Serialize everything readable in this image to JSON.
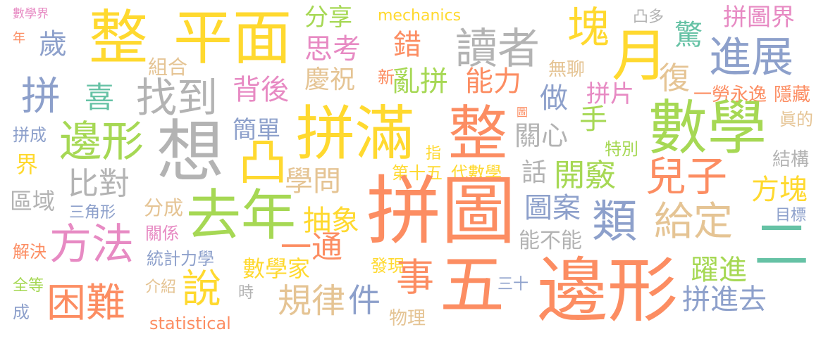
{
  "palette": {
    "orange": "#fc8d62",
    "gold": "#ffd92f",
    "green": "#a6d854",
    "teal": "#66c2a5",
    "blue": "#8da0cb",
    "pink": "#e78ac3",
    "tan": "#e5c494",
    "gray": "#b3b3b3"
  },
  "words": [
    {
      "text": "數學界",
      "color": "#e78ac3"
    },
    {
      "text": "年",
      "color": "#fc8d62"
    },
    {
      "text": "歲",
      "color": "#8da0cb"
    },
    {
      "text": "整",
      "color": "#ffd92f"
    },
    {
      "text": "平面",
      "color": "#ffd92f"
    },
    {
      "text": "分享",
      "color": "#a6d854"
    },
    {
      "text": "mechanics",
      "color": "#ffd92f"
    },
    {
      "text": "思考",
      "color": "#e78ac3"
    },
    {
      "text": "錯",
      "color": "#fc8d62"
    },
    {
      "text": "讀者",
      "color": "#b3b3b3"
    },
    {
      "text": "塊",
      "color": "#ffd92f"
    },
    {
      "text": "月",
      "color": "#ffd92f"
    },
    {
      "text": "驚",
      "color": "#66c2a5"
    },
    {
      "text": "凸多",
      "color": "#b3b3b3"
    },
    {
      "text": "拼圖界",
      "color": "#e78ac3"
    },
    {
      "text": "進展",
      "color": "#8da0cb"
    },
    {
      "text": "組合",
      "color": "#e5c494"
    },
    {
      "text": "拼",
      "color": "#8da0cb"
    },
    {
      "text": "喜",
      "color": "#66c2a5"
    },
    {
      "text": "找到",
      "color": "#b3b3b3"
    },
    {
      "text": "背後",
      "color": "#e78ac3"
    },
    {
      "text": "慶祝",
      "color": "#e5c494"
    },
    {
      "text": "新",
      "color": "#fc8d62"
    },
    {
      "text": "亂拼",
      "color": "#a6d854"
    },
    {
      "text": "能力",
      "color": "#fc8d62"
    },
    {
      "text": "無聊",
      "color": "#e5c494"
    },
    {
      "text": "復",
      "color": "#e5c494"
    },
    {
      "text": "做",
      "color": "#8da0cb"
    },
    {
      "text": "拼片",
      "color": "#e78ac3"
    },
    {
      "text": "一勞永逸",
      "color": "#fc8d62"
    },
    {
      "text": "隱藏",
      "color": "#fc8d62"
    },
    {
      "text": "拼成",
      "color": "#8da0cb"
    },
    {
      "text": "邊形",
      "color": "#a6d854"
    },
    {
      "text": "想",
      "color": "#b3b3b3"
    },
    {
      "text": "凸",
      "color": "#ffd92f"
    },
    {
      "text": "簡單",
      "color": "#8da0cb"
    },
    {
      "text": "拼滿",
      "color": "#ffd92f"
    },
    {
      "text": "整",
      "color": "#fc8d62"
    },
    {
      "text": "圖",
      "color": "#fc8d62"
    },
    {
      "text": "關心",
      "color": "#b3b3b3"
    },
    {
      "text": "手",
      "color": "#a6d854"
    },
    {
      "text": "數學",
      "color": "#a6d854"
    },
    {
      "text": "眞的",
      "color": "#e5c494"
    },
    {
      "text": "特別",
      "color": "#a6d854"
    },
    {
      "text": "界",
      "color": "#ffd92f"
    },
    {
      "text": "比對",
      "color": "#b3b3b3"
    },
    {
      "text": "指",
      "color": "#ffd92f"
    },
    {
      "text": "學問",
      "color": "#e5c494"
    },
    {
      "text": "第十五",
      "color": "#ffd92f"
    },
    {
      "text": "代數學",
      "color": "#ffd92f"
    },
    {
      "text": "話",
      "color": "#b3b3b3"
    },
    {
      "text": "開竅",
      "color": "#a6d854"
    },
    {
      "text": "兒子",
      "color": "#fc8d62"
    },
    {
      "text": "結構",
      "color": "#b3b3b3"
    },
    {
      "text": "方塊",
      "color": "#ffd92f"
    },
    {
      "text": "區域",
      "color": "#b3b3b3"
    },
    {
      "text": "三角形",
      "color": "#8da0cb"
    },
    {
      "text": "分成",
      "color": "#e5c494"
    },
    {
      "text": "去年",
      "color": "#a6d854"
    },
    {
      "text": "拼圖",
      "color": "#fc8d62"
    },
    {
      "text": "圖案",
      "color": "#8da0cb"
    },
    {
      "text": "類",
      "color": "#8da0cb"
    },
    {
      "text": "給定",
      "color": "#e5c494"
    },
    {
      "text": "目標",
      "color": "#8da0cb"
    },
    {
      "text": "方法",
      "color": "#e78ac3"
    },
    {
      "text": "抽象",
      "color": "#ffd92f"
    },
    {
      "text": "關係",
      "color": "#e78ac3"
    },
    {
      "text": "能不能",
      "color": "#b3b3b3"
    },
    {
      "text": "二",
      "color": "#66c2a5"
    },
    {
      "text": "解決",
      "color": "#fc8d62"
    },
    {
      "text": "一通",
      "color": "#fc8d62"
    },
    {
      "text": "統計力學",
      "color": "#8da0cb"
    },
    {
      "text": "數學家",
      "color": "#ffd92f"
    },
    {
      "text": "發現",
      "color": "#ffd92f"
    },
    {
      "text": "事",
      "color": "#fc8d62"
    },
    {
      "text": "五",
      "color": "#fc8d62"
    },
    {
      "text": "躍進",
      "color": "#a6d854"
    },
    {
      "text": "全等",
      "color": "#a6d854"
    },
    {
      "text": "介紹",
      "color": "#e5c494"
    },
    {
      "text": "說",
      "color": "#ffd92f"
    },
    {
      "text": "時",
      "color": "#b3b3b3"
    },
    {
      "text": "三十",
      "color": "#8da0cb"
    },
    {
      "text": "邊形",
      "color": "#fc8d62"
    },
    {
      "text": "拼進去",
      "color": "#8da0cb"
    },
    {
      "text": "困難",
      "color": "#fc8d62"
    },
    {
      "text": "規律",
      "color": "#e5c494"
    },
    {
      "text": "件",
      "color": "#8da0cb"
    },
    {
      "text": "成",
      "color": "#8da0cb"
    },
    {
      "text": "statistical",
      "color": "#fc8d62"
    },
    {
      "text": "物理",
      "color": "#e5c494"
    }
  ]
}
